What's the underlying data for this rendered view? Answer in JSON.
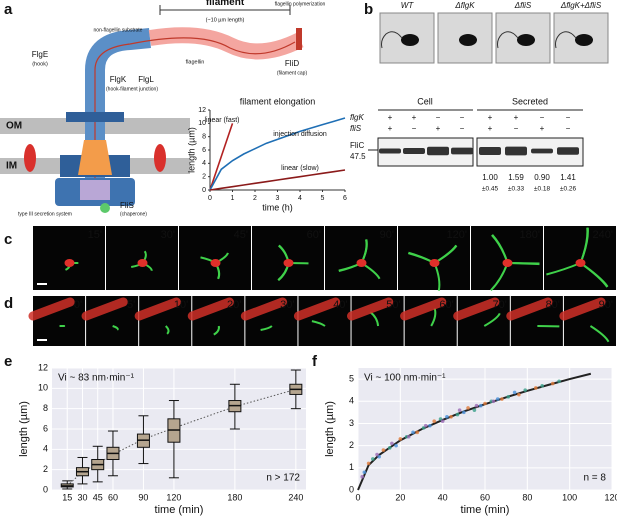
{
  "panel_labels": [
    "a",
    "b",
    "c",
    "d",
    "e",
    "f"
  ],
  "diagram_a": {
    "filament": "filament",
    "filament_note": "(~10 µm length)",
    "polymerization": "flagellin polymerization",
    "substrate": "non-flagellin substrate",
    "flge": "FlgE",
    "flge_note": "(hook)",
    "flgk": "FlgK",
    "flgl": "FlgL",
    "junction_note": "(hook-filament junction)",
    "flagellin": "flagellin",
    "flid": "FliD",
    "flid_note": "(filament cap)",
    "om": "OM",
    "im": "IM",
    "t3ss": "type III secretion system",
    "flis": "FliS",
    "flis_note": "(chaperone)"
  },
  "panel_b": {
    "strains": [
      "WT",
      "ΔflgK",
      "ΔfliS",
      "ΔflgK+ΔfliS"
    ],
    "cell": "Cell",
    "secreted": "Secreted",
    "row_labels": [
      "flgK",
      "fliS"
    ],
    "signs": [
      [
        "+",
        "+",
        "−",
        "−",
        "+",
        "+",
        "−",
        "−"
      ],
      [
        "+",
        "−",
        "+",
        "−",
        "+",
        "−",
        "+",
        "−"
      ]
    ],
    "band_label": "FliC",
    "marker": "47.5",
    "quant": [
      "1.00",
      "1.59",
      "0.90",
      "1.41"
    ],
    "quant_err": [
      "±0.45",
      "±0.33",
      "±0.18",
      "±0.26"
    ]
  },
  "panel_c": {
    "times": [
      "15'",
      "30'",
      "45'",
      "60'",
      "90'",
      "120'",
      "180'",
      "240'"
    ]
  },
  "panel_d": {
    "times": [
      "0'",
      "5'",
      "10'",
      "20'",
      "30'",
      "40'",
      "50'",
      "60'",
      "70'",
      "80'",
      "90'"
    ]
  },
  "chart_data": [
    {
      "type": "line",
      "title": "filament elongation",
      "xlabel": "time (h)",
      "ylabel": "length (µm)",
      "x": [
        0,
        0.5,
        1,
        1.5,
        2,
        2.5,
        3,
        3.5,
        4,
        4.5,
        5,
        5.5,
        6
      ],
      "series": [
        {
          "name": "linear (fast)",
          "color": "#b22222",
          "values": [
            0,
            5,
            10,
            null,
            null,
            null,
            null,
            null,
            null,
            null,
            null,
            null,
            null
          ]
        },
        {
          "name": "injection diffusion",
          "color": "#1f6fb5",
          "values": [
            0,
            3.1,
            4.4,
            5.4,
            6.2,
            7.0,
            7.6,
            8.2,
            8.8,
            9.3,
            9.8,
            10.3,
            10.8
          ]
        },
        {
          "name": "linear (slow)",
          "color": "#8b1a1a",
          "values": [
            0,
            0.25,
            0.5,
            0.75,
            1,
            1.25,
            1.5,
            1.75,
            2,
            2.25,
            2.5,
            2.75,
            3
          ]
        }
      ],
      "xlim": [
        0,
        6
      ],
      "xticks": [
        0,
        1,
        2,
        3,
        4,
        5,
        6
      ],
      "ylim": [
        0,
        12
      ],
      "yticks": [
        0,
        2,
        4,
        6,
        8,
        10,
        12
      ],
      "grid": false
    },
    {
      "type": "box",
      "xlabel": "time (min)",
      "ylabel": "length (µm)",
      "annotations": [
        "Vi ~ 83 nm·min⁻¹",
        "n > 172"
      ],
      "boxes": {
        "x": [
          15,
          30,
          45,
          60,
          90,
          120,
          180,
          240
        ],
        "whisker_low": [
          0.1,
          0.6,
          0.8,
          1.4,
          2.6,
          1.2,
          6.0,
          8.0
        ],
        "q1": [
          0.3,
          1.4,
          2.0,
          3.0,
          4.2,
          4.7,
          7.7,
          9.4
        ],
        "median": [
          0.4,
          1.8,
          2.5,
          3.6,
          4.9,
          5.9,
          8.3,
          9.9
        ],
        "q3": [
          0.6,
          2.2,
          3.0,
          4.2,
          5.5,
          7.0,
          8.8,
          10.4
        ],
        "whisker_high": [
          0.9,
          3.2,
          4.3,
          5.8,
          7.3,
          8.8,
          10.4,
          11.8
        ],
        "color": "#b5a58f"
      },
      "fit": {
        "x": [
          15,
          30,
          45,
          60,
          90,
          120,
          180,
          240
        ],
        "values": [
          0.4,
          1.8,
          2.6,
          3.5,
          5.0,
          6.1,
          8.2,
          9.9
        ],
        "color": "#555555",
        "dashed": true
      },
      "xlim": [
        0,
        250
      ],
      "xticks": [
        15,
        30,
        45,
        60,
        90,
        120,
        180,
        240
      ],
      "ylim": [
        0,
        12
      ],
      "yticks": [
        0,
        2,
        4,
        6,
        8,
        10,
        12
      ],
      "grid": true,
      "background": "#eaeaf2"
    },
    {
      "type": "scatter",
      "xlabel": "time (min)",
      "ylabel": "length (µm)",
      "annotations": [
        "Vi ~ 100 nm·min⁻¹",
        "n = 8"
      ],
      "series": [
        {
          "color": "#e07b39",
          "x": [
            5,
            12,
            20,
            28,
            36,
            44,
            52,
            60,
            68,
            76,
            84,
            92
          ],
          "values": [
            1.2,
            1.8,
            2.3,
            2.6,
            3.1,
            3.3,
            3.7,
            3.9,
            4.1,
            4.3,
            4.6,
            4.8
          ]
        },
        {
          "color": "#4a90d9",
          "x": [
            3,
            10,
            18,
            26,
            34,
            42,
            50,
            58,
            66,
            74
          ],
          "values": [
            0.8,
            1.5,
            2.0,
            2.6,
            2.9,
            3.3,
            3.5,
            3.8,
            4.1,
            4.4
          ]
        },
        {
          "color": "#3aa08a",
          "x": [
            7,
            15,
            23,
            31,
            39,
            47,
            55,
            63,
            71,
            79,
            87,
            95
          ],
          "values": [
            1.4,
            1.9,
            2.4,
            2.8,
            3.2,
            3.4,
            3.6,
            4.0,
            4.2,
            4.5,
            4.7,
            4.9
          ]
        },
        {
          "color": "#9b6bb5",
          "x": [
            2,
            9,
            16,
            24,
            32,
            40,
            48,
            56,
            64
          ],
          "values": [
            0.6,
            1.6,
            2.1,
            2.4,
            2.9,
            3.1,
            3.6,
            3.8,
            4.0
          ]
        }
      ],
      "fit": {
        "x": [
          0,
          5,
          10,
          20,
          30,
          40,
          50,
          60,
          70,
          80,
          90,
          100,
          110
        ],
        "values": [
          0,
          1.12,
          1.58,
          2.24,
          2.74,
          3.16,
          3.54,
          3.87,
          4.18,
          4.47,
          4.74,
          5.0,
          5.24
        ],
        "color": "#222222",
        "dashed": false
      },
      "xlim": [
        0,
        120
      ],
      "xticks": [
        0,
        20,
        40,
        60,
        80,
        100,
        120
      ],
      "ylim": [
        0,
        5.5
      ],
      "yticks": [
        0,
        1,
        2,
        3,
        4,
        5
      ],
      "grid": true,
      "background": "#eaeaf2"
    }
  ]
}
